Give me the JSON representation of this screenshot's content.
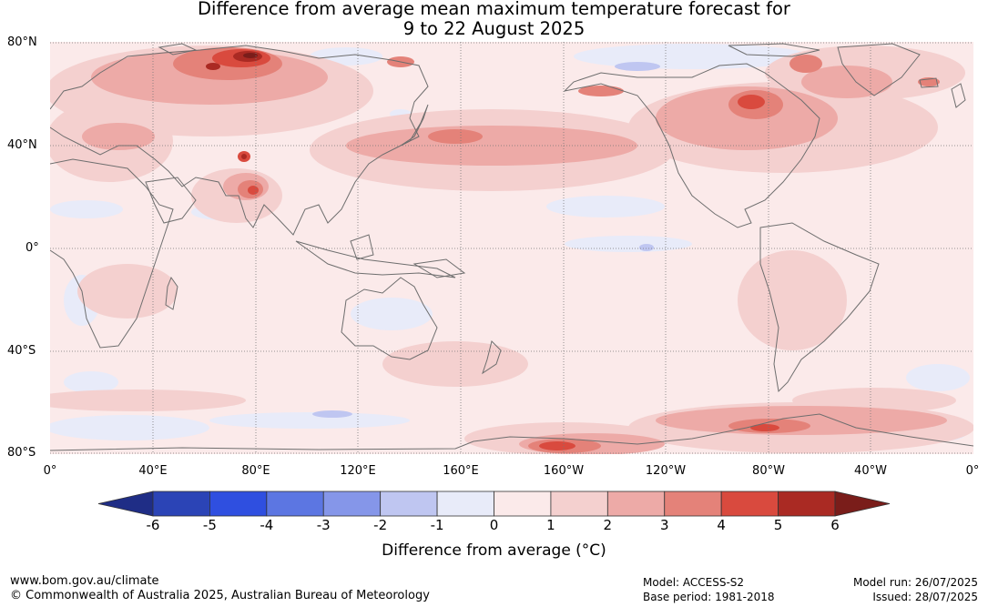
{
  "title_line1": "Difference from average mean maximum temperature forecast for",
  "title_line2": "9 to 22 August 2025",
  "lat_labels": [
    "80°N",
    "40°N",
    "0°",
    "40°S",
    "80°S"
  ],
  "lon_labels": [
    "0°",
    "40°E",
    "80°E",
    "120°E",
    "160°E",
    "160°W",
    "120°W",
    "80°W",
    "40°W",
    "0°"
  ],
  "colorbar": {
    "ticks": [
      "-6",
      "-5",
      "-4",
      "-3",
      "-2",
      "-1",
      "0",
      "1",
      "2",
      "3",
      "4",
      "5",
      "6"
    ],
    "colors": [
      "#1f2d86",
      "#2b44b6",
      "#2f4fe0",
      "#5c76e2",
      "#8596e9",
      "#bfc6f1",
      "#e8ebf9",
      "#fbeaea",
      "#f4d0cf",
      "#edaaa7",
      "#e48279",
      "#d94a3e",
      "#aa2a23",
      "#7a1d1a"
    ],
    "label": "Difference from average (°C)"
  },
  "map_colors": {
    "land_outline": "#6e6e6e",
    "grid": "#777777",
    "background": "#fbeaea"
  },
  "footer": {
    "website": "www.bom.gov.au/climate",
    "copyright": "© Commonwealth of Australia 2025, Australian Bureau of Meteorology",
    "model": "Model: ACCESS-S2",
    "base_period": "Base period: 1981-2018",
    "model_run": "Model run: 26/07/2025",
    "issued": "Issued: 28/07/2025"
  }
}
